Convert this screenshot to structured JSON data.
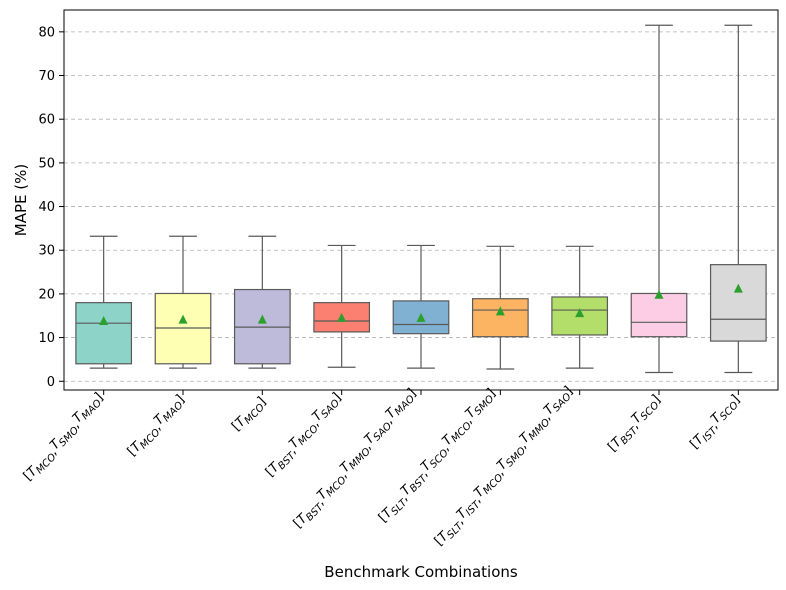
{
  "chart_data": {
    "type": "box",
    "title": "",
    "xlabel": "Benchmark Combinations",
    "ylabel": "MAPE (%)",
    "ylim": [
      -2,
      85
    ],
    "yticks": [
      0,
      10,
      20,
      30,
      40,
      50,
      60,
      70,
      80
    ],
    "grid": "y-dashed",
    "categories": [
      {
        "parts": [
          [
            "T",
            "MCO"
          ],
          [
            "T",
            "SMO"
          ],
          [
            "T",
            "MAO"
          ]
        ]
      },
      {
        "parts": [
          [
            "T",
            "MCO"
          ],
          [
            "T",
            "MAO"
          ]
        ]
      },
      {
        "parts": [
          [
            "T",
            "MCO"
          ]
        ]
      },
      {
        "parts": [
          [
            "T",
            "BST"
          ],
          [
            "T",
            "MCO"
          ],
          [
            "T",
            "SAO"
          ]
        ]
      },
      {
        "parts": [
          [
            "T",
            "BST"
          ],
          [
            "T",
            "MCO"
          ],
          [
            "T",
            "MMO"
          ],
          [
            "T",
            "SAO"
          ],
          [
            "T",
            "MAO"
          ]
        ]
      },
      {
        "parts": [
          [
            "T",
            "SLT"
          ],
          [
            "T",
            "BST"
          ],
          [
            "T",
            "SCO"
          ],
          [
            "T",
            "MCO"
          ],
          [
            "T",
            "SMO"
          ]
        ]
      },
      {
        "parts": [
          [
            "T",
            "SLT"
          ],
          [
            "T",
            "IST"
          ],
          [
            "T",
            "MCO"
          ],
          [
            "T",
            "SMO"
          ],
          [
            "T",
            "MMO"
          ],
          [
            "T",
            "SAO"
          ]
        ]
      },
      {
        "parts": [
          [
            "T",
            "BST"
          ],
          [
            "T",
            "SCO"
          ]
        ]
      },
      {
        "parts": [
          [
            "T",
            "IST"
          ],
          [
            "T",
            "SCO"
          ]
        ]
      }
    ],
    "boxes": [
      {
        "whislo": 3.0,
        "q1": 4.0,
        "med": 13.3,
        "q3": 18.0,
        "whishi": 33.2,
        "mean": 13.8,
        "color": "#8dd3c7"
      },
      {
        "whislo": 3.0,
        "q1": 4.0,
        "med": 12.2,
        "q3": 20.1,
        "whishi": 33.2,
        "mean": 14.1,
        "color": "#ffffb3"
      },
      {
        "whislo": 3.0,
        "q1": 4.0,
        "med": 12.4,
        "q3": 21.0,
        "whishi": 33.2,
        "mean": 14.1,
        "color": "#bebada"
      },
      {
        "whislo": 3.2,
        "q1": 11.3,
        "med": 13.8,
        "q3": 18.0,
        "whishi": 31.1,
        "mean": 14.5,
        "color": "#fb8072"
      },
      {
        "whislo": 3.0,
        "q1": 10.9,
        "med": 13.0,
        "q3": 18.4,
        "whishi": 31.1,
        "mean": 14.5,
        "color": "#80b1d3"
      },
      {
        "whislo": 2.8,
        "q1": 10.2,
        "med": 16.3,
        "q3": 18.9,
        "whishi": 30.9,
        "mean": 16.0,
        "color": "#fdb462"
      },
      {
        "whislo": 3.0,
        "q1": 10.6,
        "med": 16.3,
        "q3": 19.3,
        "whishi": 30.9,
        "mean": 15.6,
        "color": "#b3de69"
      },
      {
        "whislo": 2.0,
        "q1": 10.2,
        "med": 13.5,
        "q3": 20.1,
        "whishi": 81.5,
        "mean": 19.8,
        "color": "#fccde5"
      },
      {
        "whislo": 2.0,
        "q1": 9.2,
        "med": 14.2,
        "q3": 26.7,
        "whishi": 81.5,
        "mean": 21.2,
        "color": "#d9d9d9"
      }
    ],
    "mean_marker_color": "#2ca02c",
    "line_color": "#595959"
  }
}
